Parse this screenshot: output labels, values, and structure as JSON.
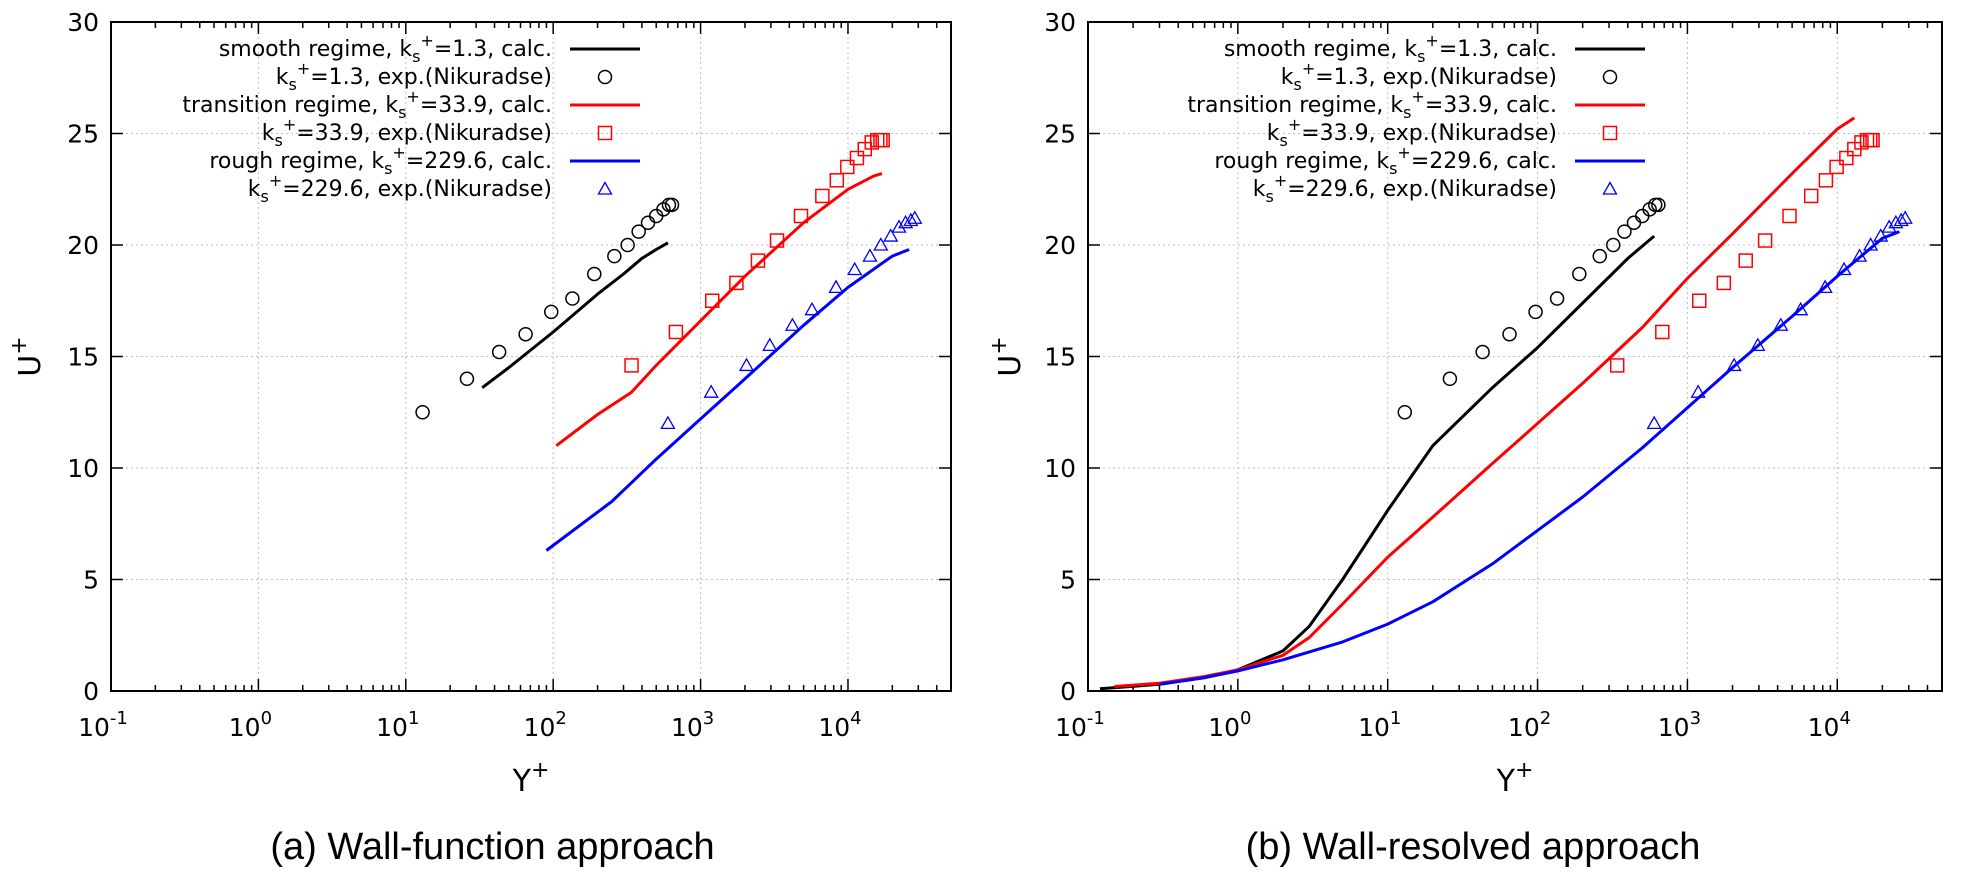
{
  "figure": {
    "legend_entries": [
      {
        "pre": "smooth regime, k",
        "sub": "s",
        "sup": "+",
        "post": "=1.3, calc.",
        "color": "#000000",
        "marker": "line"
      },
      {
        "pre": "k",
        "sub": "s",
        "sup": "+",
        "post": "=1.3, exp.(Nikuradse)",
        "color": "#000000",
        "marker": "circle"
      },
      {
        "pre": "transition regime, k",
        "sub": "s",
        "sup": "+",
        "post": "=33.9, calc.",
        "color": "#ff0000",
        "marker": "line"
      },
      {
        "pre": "k",
        "sub": "s",
        "sup": "+",
        "post": "=33.9, exp.(Nikuradse)",
        "color": "#ff0000",
        "marker": "square"
      },
      {
        "pre": "rough regime, k",
        "sub": "s",
        "sup": "+",
        "post": "=229.6, calc.",
        "color": "#0000ff",
        "marker": "line"
      },
      {
        "pre": "k",
        "sub": "s",
        "sup": "+",
        "post": "=229.6, exp.(Nikuradse)",
        "color": "#0000ff",
        "marker": "triangle"
      }
    ],
    "colors": {
      "smooth": "#000000",
      "transition": "#ff0000",
      "rough": "#0000ff",
      "grid": "#bfbfbf"
    }
  },
  "chart_data": [
    {
      "type": "line",
      "caption": "(a) Wall-function approach",
      "xlabel": {
        "base": "Y",
        "sup": "+"
      },
      "ylabel": {
        "base": "U",
        "sup": "+"
      },
      "xscale": "log",
      "xlim": [
        0.1,
        50000
      ],
      "ylim": [
        0,
        30
      ],
      "yticks": [
        0,
        5,
        10,
        15,
        20,
        25,
        30
      ],
      "xticks": [
        {
          "base": "10",
          "exp": "-1",
          "value": 0.1
        },
        {
          "base": "10",
          "exp": "0",
          "value": 1
        },
        {
          "base": "10",
          "exp": "1",
          "value": 10
        },
        {
          "base": "10",
          "exp": "2",
          "value": 100
        },
        {
          "base": "10",
          "exp": "3",
          "value": 1000
        },
        {
          "base": "10",
          "exp": "4",
          "value": 10000
        }
      ],
      "grid": true,
      "legend_position": "top-left",
      "series": [
        {
          "name": "smooth regime, ks+=1.3, calc.",
          "kind": "line",
          "color": "#000000",
          "x": [
            33,
            50,
            100,
            200,
            300,
            400,
            500,
            600
          ],
          "y": [
            13.6,
            14.5,
            16.1,
            17.8,
            18.7,
            19.4,
            19.8,
            20.1
          ]
        },
        {
          "name": "ks+=1.3, exp.(Nikuradse)",
          "kind": "circle",
          "color": "#000000",
          "x": [
            13,
            26,
            43,
            65,
            97,
            135,
            190,
            260,
            320,
            380,
            440,
            500,
            560,
            610,
            640
          ],
          "y": [
            12.5,
            14.0,
            15.2,
            16.0,
            17.0,
            17.6,
            18.7,
            19.5,
            20.0,
            20.6,
            21.0,
            21.3,
            21.6,
            21.8,
            21.8
          ]
        },
        {
          "name": "transition regime, ks+=33.9, calc.",
          "kind": "line",
          "color": "#ff0000",
          "x": [
            105,
            200,
            340,
            500,
            1000,
            2000,
            5000,
            10000,
            15000,
            17000
          ],
          "y": [
            11.0,
            12.4,
            13.4,
            14.6,
            16.6,
            18.6,
            21.0,
            22.5,
            23.1,
            23.2
          ]
        },
        {
          "name": "ks+=33.9, exp.(Nikuradse)",
          "kind": "square",
          "color": "#ff0000",
          "x": [
            340,
            680,
            1200,
            1750,
            2450,
            3300,
            4800,
            6700,
            8400,
            9900,
            11500,
            13000,
            14500,
            15800,
            16600,
            17200
          ],
          "y": [
            14.6,
            16.1,
            17.5,
            18.3,
            19.3,
            20.2,
            21.3,
            22.2,
            22.9,
            23.5,
            23.9,
            24.3,
            24.6,
            24.7,
            24.7,
            24.7
          ]
        },
        {
          "name": "rough regime, ks+=229.6, calc.",
          "kind": "line",
          "color": "#0000ff",
          "x": [
            90,
            150,
            250,
            500,
            1000,
            2000,
            5000,
            10000,
            20000,
            26000
          ],
          "y": [
            6.3,
            7.4,
            8.5,
            10.4,
            12.2,
            14.0,
            16.4,
            18.1,
            19.5,
            19.8
          ]
        },
        {
          "name": "ks+=229.6, exp.(Nikuradse)",
          "kind": "triangle",
          "color": "#0000ff",
          "x": [
            600,
            1180,
            2050,
            2950,
            4200,
            5700,
            8300,
            11100,
            14100,
            16700,
            19500,
            22200,
            24600,
            26700,
            28400
          ],
          "y": [
            12.0,
            13.4,
            14.6,
            15.5,
            16.4,
            17.1,
            18.1,
            18.9,
            19.5,
            20.0,
            20.4,
            20.8,
            21.0,
            21.1,
            21.2
          ]
        }
      ]
    },
    {
      "type": "line",
      "caption": "(b) Wall-resolved approach",
      "xlabel": {
        "base": "Y",
        "sup": "+"
      },
      "ylabel": {
        "base": "U",
        "sup": "+"
      },
      "xscale": "log",
      "xlim": [
        0.1,
        50000
      ],
      "ylim": [
        0,
        30
      ],
      "yticks": [
        0,
        5,
        10,
        15,
        20,
        25,
        30
      ],
      "xticks": [
        {
          "base": "10",
          "exp": "-1",
          "value": 0.1
        },
        {
          "base": "10",
          "exp": "0",
          "value": 1
        },
        {
          "base": "10",
          "exp": "1",
          "value": 10
        },
        {
          "base": "10",
          "exp": "2",
          "value": 100
        },
        {
          "base": "10",
          "exp": "3",
          "value": 1000
        },
        {
          "base": "10",
          "exp": "4",
          "value": 10000
        }
      ],
      "grid": true,
      "legend_position": "top-left",
      "series": [
        {
          "name": "smooth regime, ks+=1.3, calc.",
          "kind": "line",
          "color": "#000000",
          "x": [
            0.12,
            0.3,
            0.6,
            1,
            2,
            3,
            5,
            7,
            10,
            15,
            20,
            50,
            100,
            200,
            400,
            600
          ],
          "y": [
            0.1,
            0.3,
            0.6,
            0.95,
            1.8,
            2.9,
            5.0,
            6.5,
            8.1,
            9.8,
            11.0,
            13.6,
            15.4,
            17.4,
            19.4,
            20.4
          ]
        },
        {
          "name": "ks+=1.3, exp.(Nikuradse)",
          "kind": "circle",
          "color": "#000000",
          "x": [
            13,
            26,
            43,
            65,
            97,
            135,
            190,
            260,
            320,
            380,
            440,
            500,
            560,
            610,
            640
          ],
          "y": [
            12.5,
            14.0,
            15.2,
            16.0,
            17.0,
            17.6,
            18.7,
            19.5,
            20.0,
            20.6,
            21.0,
            21.3,
            21.6,
            21.8,
            21.8
          ]
        },
        {
          "name": "transition regime, ks+=33.9, calc.",
          "kind": "line",
          "color": "#ff0000",
          "x": [
            0.15,
            0.3,
            0.6,
            1,
            2,
            3,
            5,
            10,
            20,
            50,
            100,
            200,
            500,
            1000,
            2000,
            5000,
            10000,
            13000
          ],
          "y": [
            0.2,
            0.35,
            0.65,
            0.95,
            1.6,
            2.4,
            3.9,
            6.0,
            7.8,
            10.2,
            12.0,
            13.8,
            16.3,
            18.5,
            20.5,
            23.2,
            25.2,
            25.7
          ]
        },
        {
          "name": "ks+=33.9, exp.(Nikuradse)",
          "kind": "square",
          "color": "#ff0000",
          "x": [
            340,
            680,
            1200,
            1750,
            2450,
            3300,
            4800,
            6700,
            8400,
            9900,
            11500,
            13000,
            14500,
            15800,
            16600,
            17200
          ],
          "y": [
            14.6,
            16.1,
            17.5,
            18.3,
            19.3,
            20.2,
            21.3,
            22.2,
            22.9,
            23.5,
            23.9,
            24.3,
            24.6,
            24.7,
            24.7,
            24.7
          ]
        },
        {
          "name": "rough regime, ks+=229.6, calc.",
          "kind": "line",
          "color": "#0000ff",
          "x": [
            0.3,
            0.6,
            1,
            2,
            5,
            10,
            20,
            50,
            100,
            200,
            500,
            1000,
            2000,
            5000,
            10000,
            20000,
            26000
          ],
          "y": [
            0.3,
            0.6,
            0.9,
            1.4,
            2.2,
            3.0,
            4.0,
            5.7,
            7.2,
            8.7,
            10.9,
            12.7,
            14.5,
            16.8,
            18.6,
            20.3,
            20.6
          ]
        },
        {
          "name": "ks+=229.6, exp.(Nikuradse)",
          "kind": "triangle",
          "color": "#0000ff",
          "x": [
            600,
            1180,
            2050,
            2950,
            4200,
            5700,
            8300,
            11100,
            14100,
            16700,
            19500,
            22200,
            24600,
            26700,
            28400
          ],
          "y": [
            12.0,
            13.4,
            14.6,
            15.5,
            16.4,
            17.1,
            18.1,
            18.9,
            19.5,
            20.0,
            20.4,
            20.8,
            21.0,
            21.1,
            21.2
          ]
        }
      ]
    }
  ]
}
